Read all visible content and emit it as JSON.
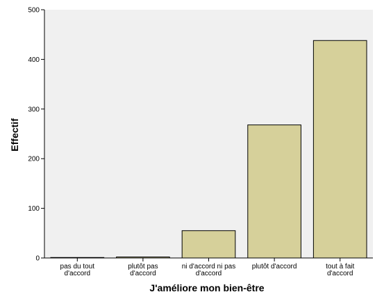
{
  "chart_data": {
    "type": "bar",
    "categories": [
      [
        "pas du tout",
        "d'accord"
      ],
      [
        "plutôt pas",
        "d'accord"
      ],
      [
        "ni d'accord ni pas",
        "d'accord"
      ],
      [
        "plutôt d'accord"
      ],
      [
        "tout à fait",
        "d'accord"
      ]
    ],
    "values": [
      1,
      2,
      55,
      268,
      438
    ],
    "xlabel": "J'améliore mon bien-être",
    "ylabel": "Effectif",
    "ylim": [
      0,
      500
    ],
    "yticks": [
      0,
      100,
      200,
      300,
      400,
      500
    ],
    "grid": false,
    "colors": {
      "plot_background": "#F0F0F0",
      "bar_fill": "#D6D09A",
      "bar_stroke": "#000000",
      "axis": "#000000"
    }
  }
}
